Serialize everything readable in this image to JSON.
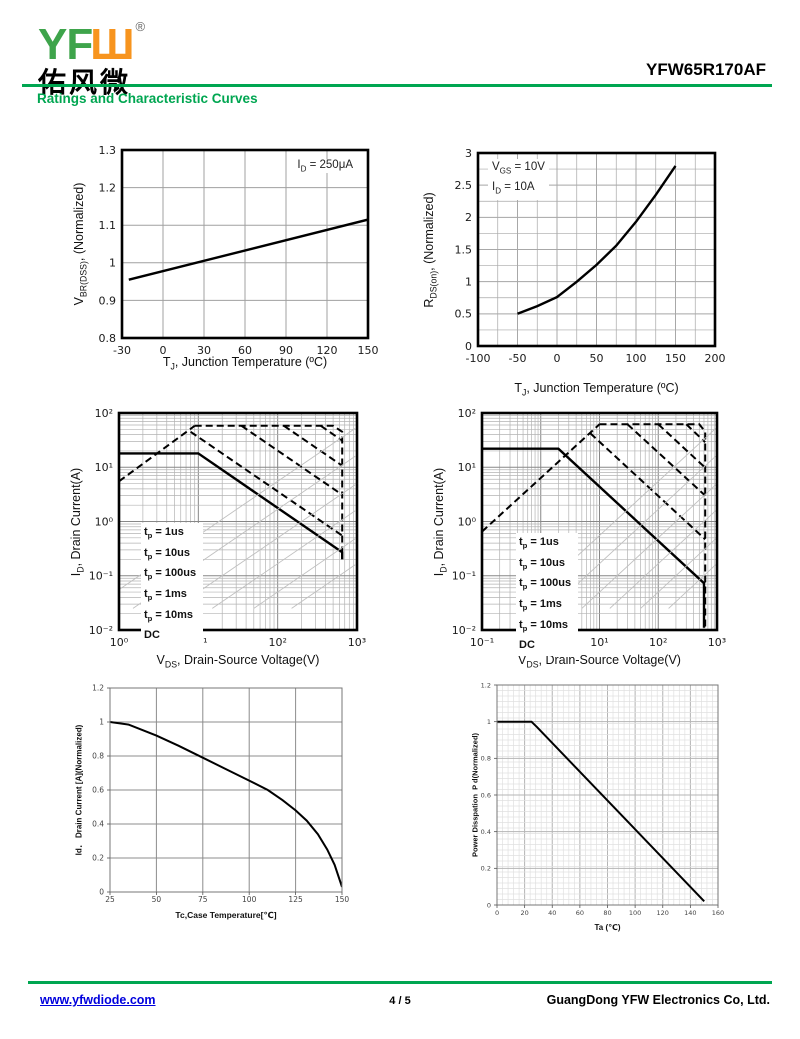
{
  "header": {
    "logo_latin_yf": "YF",
    "logo_latin_w": "Ш",
    "registered_mark": "®",
    "logo_chinese": "佑风微",
    "part_number": "YFW65R170AF",
    "section_title": "Ratings and Characteristic Curves",
    "green": "#00A651",
    "logo_green": "#3EA44B",
    "logo_orange": "#F7941E"
  },
  "footer": {
    "website": "www.yfwdiode.com",
    "page_number": "4 / 5",
    "company": "GuangDong YFW Electronics Co, Ltd.",
    "link_color": "#0000DD"
  },
  "chart_data": [
    {
      "name": "breakdown-voltage-normalized-vs-junction-temperature",
      "type": "line",
      "xscale": "linear",
      "yscale": "linear",
      "xmin": -30,
      "xmax": 150,
      "ymin": 0.8,
      "ymax": 1.3,
      "xticks": [
        -30,
        0,
        30,
        60,
        90,
        120,
        150
      ],
      "xtick_labels": [
        "-30",
        "0",
        "30",
        "60",
        "90",
        "120",
        "150"
      ],
      "yticks": [
        0.8,
        0.9,
        1,
        1.1,
        1.2,
        1.3
      ],
      "ytick_labels": [
        "0.8",
        "0.9",
        "1",
        "1.1",
        "1.2",
        "1.3"
      ],
      "xlabel": "T<sub>J</sub>, Junction Temperature (ºC)",
      "ylabel": "V<sub>BR(DSS)</sub>, (Normalized)",
      "annotation": "I<sub>D</sub> = 250μA",
      "series": [
        {
          "name": "vbr-dss-normalized",
          "style": "solid",
          "pts": [
            [
              -25,
              0.955
            ],
            [
              150,
              1.115
            ]
          ]
        }
      ]
    },
    {
      "name": "rds-on-normalized-vs-junction-temperature",
      "type": "line",
      "xscale": "linear",
      "yscale": "linear",
      "xmin": -100,
      "xmax": 200,
      "ymin": 0,
      "ymax": 3,
      "xminor": 25,
      "yminor": 0.25,
      "xticks": [
        -100,
        -50,
        0,
        50,
        100,
        150,
        200
      ],
      "xtick_labels": [
        "-100",
        "-50",
        "0",
        "50",
        "100",
        "150",
        "200"
      ],
      "yticks": [
        0,
        0.5,
        1,
        1.5,
        2,
        2.5,
        3
      ],
      "ytick_labels": [
        "0",
        "0.5",
        "1",
        "1.5",
        "2",
        "2.5",
        "3"
      ],
      "xlabel": "T<sub>J</sub>, Junction Temperature (ºC)",
      "ylabel": "R<sub>DS(on)</sub>, (Normalized)",
      "annotations": [
        "V<sub>GS</sub> = 10V",
        "I<sub>D</sub> = 10A"
      ],
      "series": [
        {
          "name": "rds-on-normalized",
          "style": "solid",
          "pts": [
            [
              -50,
              0.5
            ],
            [
              -25,
              0.62
            ],
            [
              0,
              0.76
            ],
            [
              25,
              1.0
            ],
            [
              50,
              1.26
            ],
            [
              75,
              1.56
            ],
            [
              100,
              1.93
            ],
            [
              125,
              2.35
            ],
            [
              150,
              2.8
            ]
          ]
        }
      ]
    },
    {
      "name": "safe-operating-area-1",
      "type": "line",
      "xscale": "log",
      "yscale": "log",
      "xmin": 1,
      "xmax": 1000,
      "ymin": 0.01,
      "ymax": 100,
      "xticks": [
        1,
        10,
        100,
        1000
      ],
      "xtick_labels": [
        "10⁰",
        "10¹",
        "10²",
        "10³"
      ],
      "yticks": [
        0.01,
        0.1,
        1,
        10,
        100
      ],
      "ytick_labels": [
        "10⁻²",
        "10⁻¹",
        "10⁰",
        "10¹",
        "10²"
      ],
      "xlabel": "V<sub>DS</sub>, Drain-Source Voltage(V)",
      "ylabel": "I<sub>D</sub>, Drain Current(A)",
      "legend": [
        "t<sub>p</sub> = 1us",
        "t<sub>p</sub> = 10us",
        "t<sub>p</sub> = 100us",
        "t<sub>p</sub> = 1ms",
        "t<sub>p</sub> = 10ms",
        "DC"
      ],
      "series": [
        {
          "name": "rds-on-limit",
          "style": "dashed",
          "pts": [
            [
              1,
              5.5
            ],
            [
              9,
              58
            ]
          ]
        },
        {
          "name": "tp-1us",
          "style": "dashed",
          "pts": [
            [
              9,
              58
            ],
            [
              500,
              58
            ],
            [
              650,
              45
            ],
            [
              650,
              0.28
            ]
          ]
        },
        {
          "name": "tp-10us",
          "style": "dashed",
          "pts": [
            [
              350,
              58
            ],
            [
              650,
              31
            ]
          ]
        },
        {
          "name": "tp-100us",
          "style": "dashed",
          "pts": [
            [
              120,
              58
            ],
            [
              650,
              10.7
            ]
          ]
        },
        {
          "name": "tp-1ms",
          "style": "dashed",
          "pts": [
            [
              35,
              58
            ],
            [
              650,
              3.1
            ]
          ]
        },
        {
          "name": "tp-10ms",
          "style": "dashed",
          "pts": [
            [
              8,
              45
            ],
            [
              650,
              0.55
            ]
          ]
        },
        {
          "name": "dc",
          "style": "solid",
          "pts": [
            [
              1,
              18
            ],
            [
              10,
              18
            ],
            [
              650,
              0.27
            ],
            [
              650,
              0.2
            ]
          ]
        },
        {
          "name": "scan-artifact-line-1",
          "style": "faint",
          "pts": [
            [
              0.45,
              0.025
            ],
            [
              950,
              52
            ]
          ]
        },
        {
          "name": "scan-artifact-line-2",
          "style": "faint",
          "pts": [
            [
              1.5,
              0.025
            ],
            [
              950,
              16
            ]
          ]
        },
        {
          "name": "scan-artifact-line-3",
          "style": "faint",
          "pts": [
            [
              5,
              0.025
            ],
            [
              950,
              4.75
            ]
          ]
        },
        {
          "name": "scan-artifact-line-4",
          "style": "faint",
          "pts": [
            [
              15,
              0.025
            ],
            [
              950,
              1.58
            ]
          ]
        },
        {
          "name": "scan-artifact-line-5",
          "style": "faint",
          "pts": [
            [
              50,
              0.025
            ],
            [
              950,
              0.48
            ]
          ]
        },
        {
          "name": "scan-artifact-line-6",
          "style": "faint",
          "pts": [
            [
              150,
              0.025
            ],
            [
              950,
              0.16
            ]
          ]
        }
      ]
    },
    {
      "name": "safe-operating-area-2",
      "type": "line",
      "xscale": "log",
      "yscale": "log",
      "xmin": 0.1,
      "xmax": 1000,
      "ymin": 0.01,
      "ymax": 100,
      "xticks": [
        0.1,
        1,
        10,
        100,
        1000
      ],
      "xtick_labels": [
        "10⁻¹",
        "10⁰",
        "10¹",
        "10²",
        "10³"
      ],
      "yticks": [
        0.01,
        0.1,
        1,
        10,
        100
      ],
      "ytick_labels": [
        "10⁻²",
        "10⁻¹",
        "10⁰",
        "10¹",
        "10²"
      ],
      "xlabel": "V<sub>DS</sub>, Drain-Source Voltage(V)",
      "ylabel": "I<sub>D</sub>, Drain Current(A)",
      "legend": [
        "t<sub>p</sub> = 1us",
        "t<sub>p</sub> = 10us",
        "t<sub>p</sub> = 100us",
        "t<sub>p</sub> = 1ms",
        "t<sub>p</sub> = 10ms",
        "DC"
      ],
      "series": [
        {
          "name": "rds-on-limit",
          "style": "dashed",
          "pts": [
            [
              0.1,
              0.65
            ],
            [
              10,
              62
            ]
          ]
        },
        {
          "name": "tp-1us",
          "style": "dashed",
          "pts": [
            [
              10,
              62
            ],
            [
              500,
              62
            ],
            [
              630,
              45
            ],
            [
              630,
              0.011
            ]
          ]
        },
        {
          "name": "tp-10us",
          "style": "dashed",
          "pts": [
            [
              300,
              62
            ],
            [
              630,
              29
            ]
          ]
        },
        {
          "name": "tp-100us",
          "style": "dashed",
          "pts": [
            [
              100,
              62
            ],
            [
              630,
              9.8
            ]
          ]
        },
        {
          "name": "tp-1ms",
          "style": "dashed",
          "pts": [
            [
              30,
              62
            ],
            [
              630,
              3.0
            ]
          ]
        },
        {
          "name": "tp-10ms",
          "style": "dashed",
          "pts": [
            [
              7,
              42
            ],
            [
              630,
              0.47
            ]
          ]
        },
        {
          "name": "dc",
          "style": "solid",
          "pts": [
            [
              0.1,
              22
            ],
            [
              2,
              22
            ],
            [
              600,
              0.073
            ],
            [
              600,
              0.011
            ]
          ]
        },
        {
          "name": "scan-artifact-line-1",
          "style": "faint",
          "pts": [
            [
              0.45,
              0.025
            ],
            [
              950,
              52
            ]
          ]
        },
        {
          "name": "scan-artifact-line-2",
          "style": "faint",
          "pts": [
            [
              1.5,
              0.025
            ],
            [
              950,
              16
            ]
          ]
        },
        {
          "name": "scan-artifact-line-3",
          "style": "faint",
          "pts": [
            [
              5,
              0.025
            ],
            [
              950,
              4.75
            ]
          ]
        },
        {
          "name": "scan-artifact-line-4",
          "style": "faint",
          "pts": [
            [
              15,
              0.025
            ],
            [
              950,
              1.58
            ]
          ]
        },
        {
          "name": "scan-artifact-line-5",
          "style": "faint",
          "pts": [
            [
              50,
              0.025
            ],
            [
              950,
              0.48
            ]
          ]
        },
        {
          "name": "scan-artifact-line-6",
          "style": "faint",
          "pts": [
            [
              150,
              0.025
            ],
            [
              950,
              0.16
            ]
          ]
        }
      ]
    },
    {
      "name": "drain-current-derating-vs-case-temperature",
      "type": "line",
      "xscale": "linear",
      "yscale": "linear",
      "xmin": 25,
      "xmax": 150,
      "ymin": 0,
      "ymax": 1.2,
      "xticks": [
        25,
        50,
        75,
        100,
        125,
        150
      ],
      "xtick_labels": [
        "25",
        "50",
        "75",
        "100",
        "125",
        "150"
      ],
      "yticks": [
        0,
        0.2,
        0.4,
        0.6,
        0.8,
        1,
        1.2
      ],
      "ytick_labels": [
        "0",
        "0.2",
        "0.4",
        "0.6",
        "0.8",
        "1",
        "1.2"
      ],
      "xlabel": "Tc,Case Temperature[℃]",
      "ylabel": "Id．&nbsp;Drain Current [A](Normalized)",
      "series": [
        {
          "name": "id-normalized",
          "style": "solid",
          "pts": [
            [
              25,
              1.0
            ],
            [
              35,
              0.985
            ],
            [
              50,
              0.92
            ],
            [
              62,
              0.86
            ],
            [
              75,
              0.79
            ],
            [
              88,
              0.72
            ],
            [
              100,
              0.655
            ],
            [
              110,
              0.6
            ],
            [
              118,
              0.54
            ],
            [
              125,
              0.48
            ],
            [
              131,
              0.42
            ],
            [
              137,
              0.34
            ],
            [
              142,
              0.25
            ],
            [
              146,
              0.16
            ],
            [
              150,
              0.03
            ]
          ]
        }
      ]
    },
    {
      "name": "power-dissipation-derating-vs-ambient-temperature",
      "type": "line",
      "xscale": "linear",
      "yscale": "linear",
      "xmin": 0,
      "xmax": 160,
      "ymin": 0,
      "ymax": 1.2,
      "xminor": 4,
      "yminor": 0.03,
      "xticks": [
        0,
        20,
        40,
        60,
        80,
        100,
        120,
        140,
        160
      ],
      "xtick_labels": [
        "0",
        "20",
        "40",
        "60",
        "80",
        "100",
        "120",
        "140",
        "160"
      ],
      "yticks": [
        0,
        0.2,
        0.4,
        0.6,
        0.8,
        1,
        1.2
      ],
      "ytick_labels": [
        "0",
        "0.2",
        "0.4",
        "0.6",
        "0.8",
        "1",
        "1.2"
      ],
      "xlabel": "Ta (℃)",
      "ylabel": "Power Disspation&nbsp; P d(Normalized)",
      "series": [
        {
          "name": "pd-normalized",
          "style": "solid",
          "pts": [
            [
              0,
              1.0
            ],
            [
              25,
              1.0
            ],
            [
              29,
              0.97
            ],
            [
              150,
              0.02
            ]
          ]
        }
      ]
    }
  ]
}
